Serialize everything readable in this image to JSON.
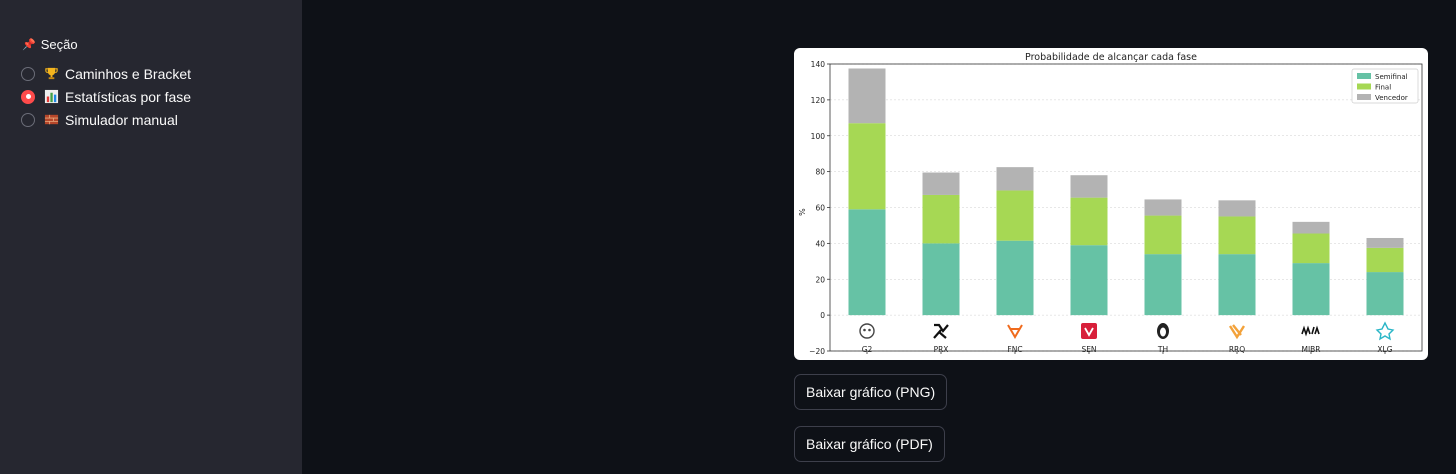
{
  "sidebar": {
    "section_label": "Seção",
    "options": [
      {
        "label": "Caminhos e Bracket",
        "icon": "trophy-icon",
        "selected": false
      },
      {
        "label": "Estatísticas por fase",
        "icon": "bar-chart-icon",
        "selected": true
      },
      {
        "label": "Simulador manual",
        "icon": "bricks-icon",
        "selected": false
      }
    ]
  },
  "buttons": {
    "download_png": "Baixar gráfico (PNG)",
    "download_pdf": "Baixar gráfico (PDF)"
  },
  "colors": {
    "semifinal": "#66c2a5",
    "final": "#a6d854",
    "vencedor": "#b3b3b3",
    "accent": "#ff4b4b"
  },
  "chart_data": {
    "type": "bar",
    "stacked": true,
    "title": "Probabilidade de alcançar cada fase",
    "xlabel": "",
    "ylabel": "%",
    "ylim": [
      -20,
      140
    ],
    "yticks": [
      -20,
      0,
      20,
      40,
      60,
      80,
      100,
      120,
      140
    ],
    "grid": true,
    "legend_position": "top-right",
    "categories": [
      "G2",
      "PRX",
      "FNC",
      "SEN",
      "TH",
      "RRQ",
      "MIBR",
      "XLG"
    ],
    "series": [
      {
        "name": "Semifinal",
        "values": [
          59,
          40,
          41.5,
          39,
          34,
          34,
          29,
          24
        ]
      },
      {
        "name": "Final",
        "values": [
          48,
          27,
          28,
          26.5,
          21.5,
          21,
          16.5,
          13.5
        ]
      },
      {
        "name": "Vencedor",
        "values": [
          30.5,
          12.5,
          13,
          12.5,
          9,
          9,
          6.5,
          5.5
        ]
      }
    ]
  }
}
